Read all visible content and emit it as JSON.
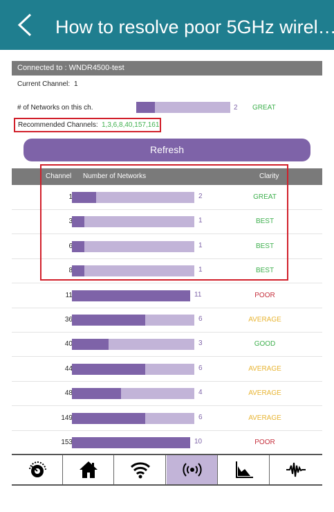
{
  "header": {
    "title": "How to resolve poor 5GHz wirel…"
  },
  "connection": {
    "label": "Connected to : WNDR4500-test"
  },
  "current_channel": {
    "label": "Current Channel:",
    "value": "1"
  },
  "networks_on_channel": {
    "label": "# of Networks on this ch.",
    "count": "2",
    "fraction": 0.2,
    "clarity": "GREAT"
  },
  "recommended": {
    "label": "Recommended Channels:",
    "value": "1,3,6,8,40,157,161"
  },
  "refresh_label": "Refresh",
  "table": {
    "headers": {
      "channel": "Channel",
      "networks": "Number of Networks",
      "clarity": "Clarity"
    },
    "rows": [
      {
        "channel": "1",
        "count": "2",
        "fraction": 0.2,
        "clarity": "GREAT",
        "level": "green"
      },
      {
        "channel": "3",
        "count": "1",
        "fraction": 0.1,
        "clarity": "BEST",
        "level": "green"
      },
      {
        "channel": "6",
        "count": "1",
        "fraction": 0.1,
        "clarity": "BEST",
        "level": "green"
      },
      {
        "channel": "8",
        "count": "1",
        "fraction": 0.1,
        "clarity": "BEST",
        "level": "green"
      },
      {
        "channel": "11",
        "count": "11",
        "fraction": 1.0,
        "clarity": "POOR",
        "level": "red"
      },
      {
        "channel": "36",
        "count": "6",
        "fraction": 0.6,
        "clarity": "AVERAGE",
        "level": "amber"
      },
      {
        "channel": "40",
        "count": "3",
        "fraction": 0.3,
        "clarity": "GOOD",
        "level": "green"
      },
      {
        "channel": "44",
        "count": "6",
        "fraction": 0.6,
        "clarity": "AVERAGE",
        "level": "amber"
      },
      {
        "channel": "48",
        "count": "4",
        "fraction": 0.4,
        "clarity": "AVERAGE",
        "level": "amber"
      },
      {
        "channel": "149",
        "count": "6",
        "fraction": 0.6,
        "clarity": "AVERAGE",
        "level": "amber"
      },
      {
        "channel": "153",
        "count": "10",
        "fraction": 1.0,
        "clarity": "POOR",
        "level": "red"
      }
    ]
  },
  "nav": [
    {
      "name": "speedometer-icon"
    },
    {
      "name": "home-icon"
    },
    {
      "name": "wifi-icon"
    },
    {
      "name": "channel-radar-icon",
      "active": true
    },
    {
      "name": "graph-icon"
    },
    {
      "name": "signal-wave-icon"
    }
  ],
  "colors": {
    "header": "#1f7e8f",
    "accent": "#7e63a8",
    "accent_light": "#c2b4d8",
    "highlight_box": "#d11f2a",
    "green": "#3fb04e",
    "red": "#c6303d",
    "amber": "#e8b534"
  }
}
